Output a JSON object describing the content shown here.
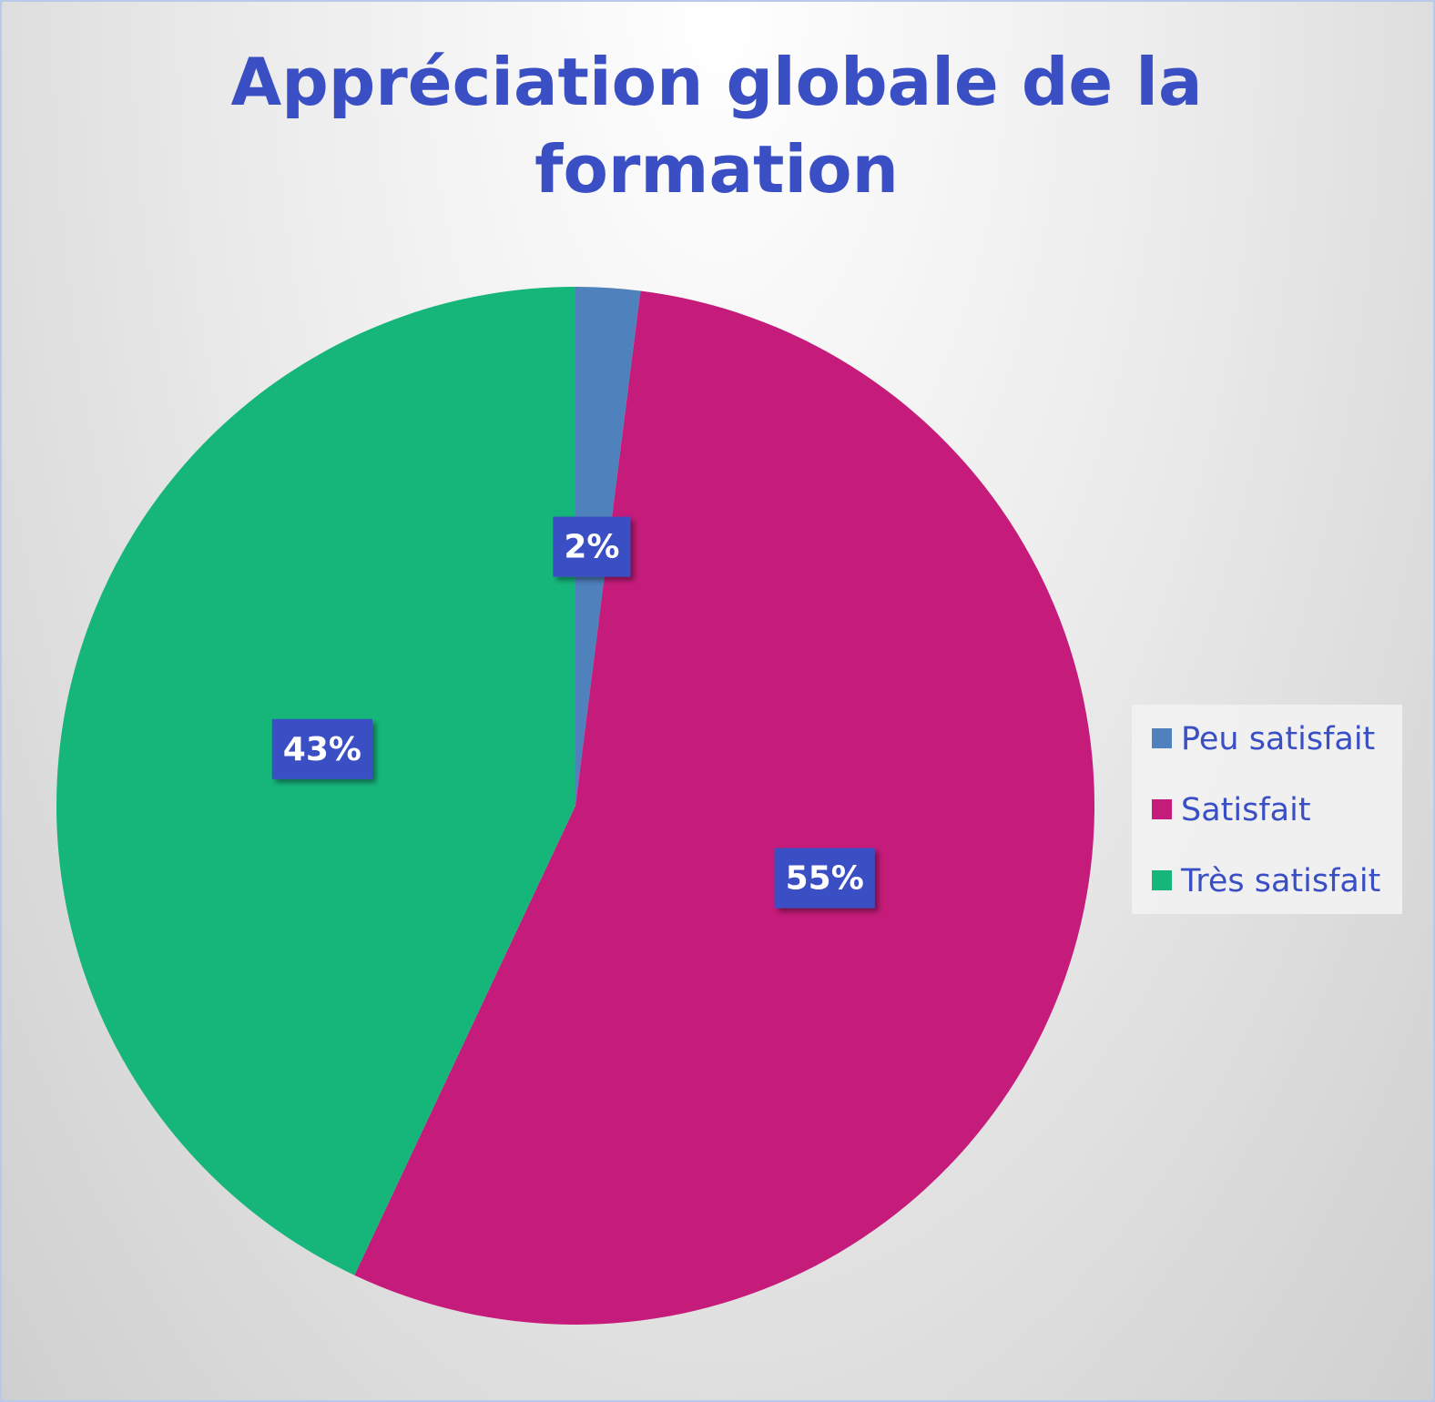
{
  "chart_data": {
    "type": "pie",
    "title": "Appréciation globale de la formation",
    "categories": [
      "Peu satisfait",
      "Satisfait",
      "Très satisfait"
    ],
    "values": [
      2,
      55,
      43
    ],
    "value_labels": [
      "2%",
      "55%",
      "43%"
    ],
    "colors": [
      "#4f81bd",
      "#c51b7a",
      "#16b67b"
    ],
    "legend": "right"
  }
}
